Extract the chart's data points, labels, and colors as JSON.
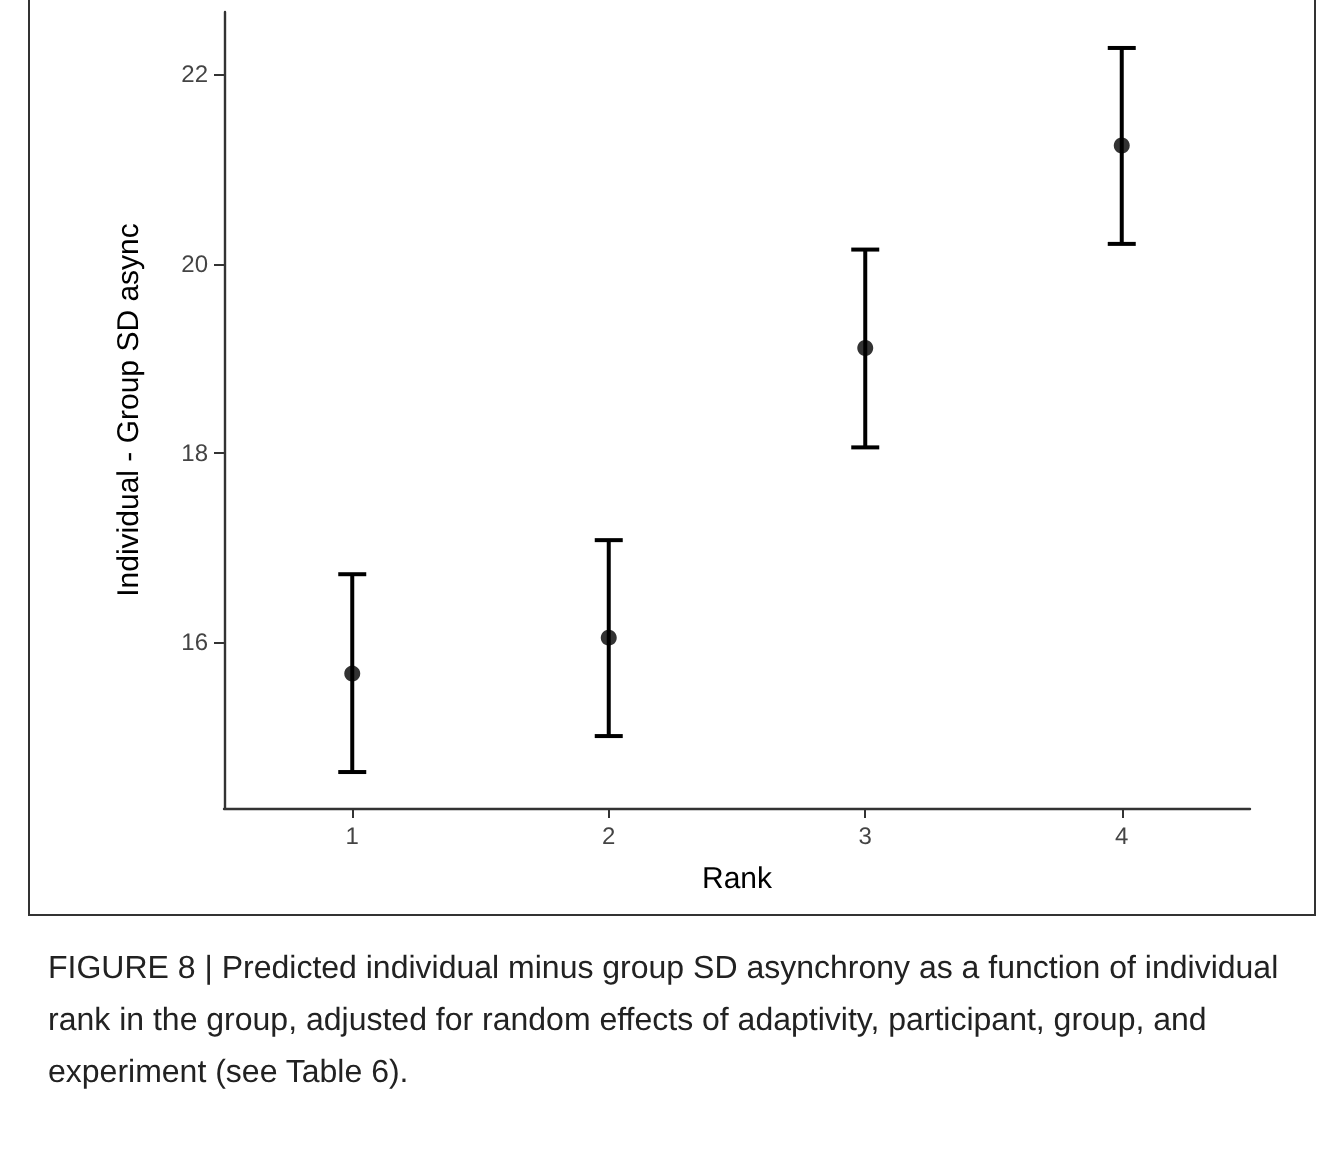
{
  "chart_data": {
    "type": "scatter",
    "xlabel": "Rank",
    "ylabel": "Individual - Group SD async",
    "categories": [
      "1",
      "2",
      "3",
      "4"
    ],
    "values": [
      15.67,
      16.05,
      19.11,
      21.25
    ],
    "errors": [
      [
        14.63,
        16.72
      ],
      [
        15.01,
        17.08
      ],
      [
        18.06,
        20.15
      ],
      [
        20.21,
        22.28
      ]
    ],
    "color": "#000000",
    "marker": "circle",
    "grid": false,
    "ylim": [
      14.25,
      22.66
    ],
    "yticks": [
      16,
      18,
      20,
      22
    ],
    "annotations": [
      "FIGURE 8 | Predicted individual minus group SD asynchrony as a function of individual rank in the group, adjusted for random effects of adaptivity, participant, group, and experiment (see Table 6)."
    ]
  }
}
